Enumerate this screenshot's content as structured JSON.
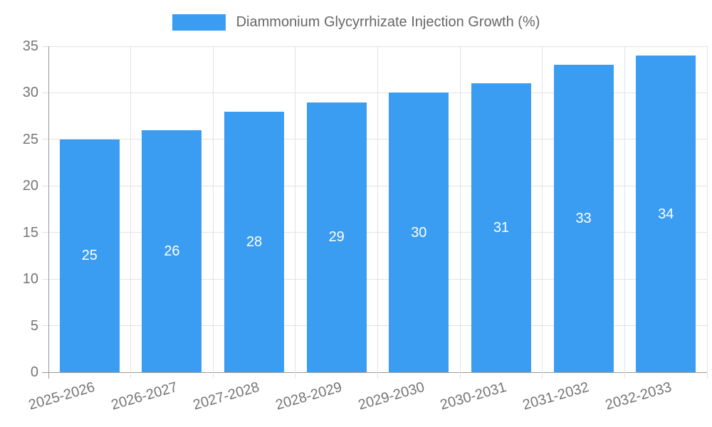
{
  "legend": {
    "label": "Diammonium Glycyrrhizate Injection Growth (%)"
  },
  "colors": {
    "bar": "#3b9df2",
    "grid": "#e2e2e2",
    "axis": "#9a9a9a",
    "tick_label": "#757575",
    "legend_text": "#666666",
    "value_label": "#ffffff",
    "background": "#ffffff"
  },
  "chart_data": {
    "type": "bar",
    "title": "Diammonium Glycyrrhizate Injection Growth (%)",
    "categories": [
      "2025-2026",
      "2026-2027",
      "2027-2028",
      "2028-2029",
      "2029-2030",
      "2030-2031",
      "2031-2032",
      "2032-2033"
    ],
    "values": [
      25,
      26,
      28,
      29,
      30,
      31,
      33,
      34
    ],
    "xlabel": "",
    "ylabel": "",
    "ylim": [
      0,
      35
    ],
    "yticks": [
      0,
      5,
      10,
      15,
      20,
      25,
      30,
      35
    ],
    "grid": true,
    "legend_position": "top-center",
    "value_labels_position": "inside-center",
    "x_tick_rotation_deg": -16
  }
}
